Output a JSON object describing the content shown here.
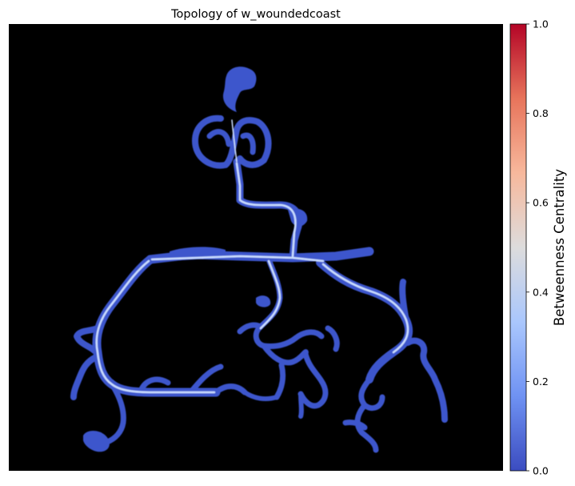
{
  "chart_data": {
    "type": "heatmap",
    "title": "Topology of w_woundedcoast",
    "colormap": "coolwarm",
    "background_color": "#000000",
    "colorbar": {
      "label": "Betweenness Centrality",
      "range": [
        0.0,
        1.0
      ],
      "ticks": [
        "0.0",
        "0.2",
        "0.4",
        "0.6",
        "0.8",
        "1.0"
      ],
      "stops": [
        "#3b4cc0",
        "#6f92f3",
        "#aac7fd",
        "#dddcdc",
        "#f7b89c",
        "#e7745b",
        "#b40426"
      ],
      "placement": "right"
    },
    "map_color_low": "#3c56cc",
    "map_color_high": "#c9dcff",
    "axes_visible": false
  }
}
